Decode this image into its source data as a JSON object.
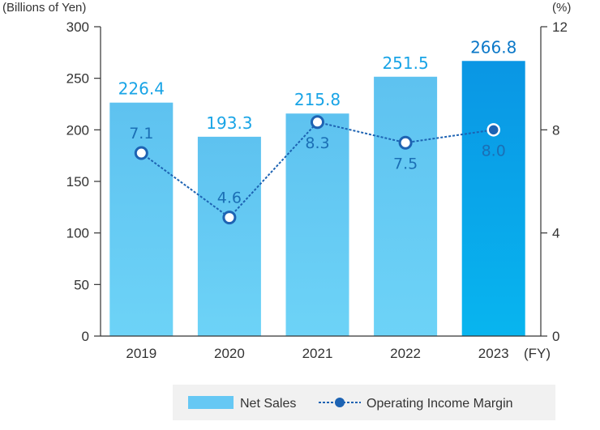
{
  "chart_data": {
    "type": "bar",
    "categories": [
      "2019",
      "2020",
      "2021",
      "2022",
      "2023"
    ],
    "x_suffix": "(FY)",
    "series": [
      {
        "name": "Net Sales",
        "type": "bar",
        "axis": "left",
        "values": [
          226.4,
          193.3,
          215.8,
          251.5,
          266.8
        ],
        "labels": [
          "226.4",
          "193.3",
          "215.8",
          "251.5",
          "266.8"
        ]
      },
      {
        "name": "Operating Income Margin",
        "type": "line",
        "axis": "right",
        "values": [
          7.1,
          4.6,
          8.3,
          7.5,
          8.0
        ],
        "labels": [
          "7.1",
          "4.6",
          "8.3",
          "7.5",
          "8.0"
        ]
      }
    ],
    "y_left": {
      "label": "(Billions of Yen)",
      "ylim": [
        0,
        300
      ],
      "ticks": [
        "0",
        "50",
        "100",
        "150",
        "200",
        "250",
        "300"
      ]
    },
    "y_right": {
      "label": "(%)",
      "ylim": [
        0,
        12
      ],
      "ticks": [
        "0",
        "4",
        "8",
        "12"
      ]
    },
    "legend": [
      "Net Sales",
      "Operating Income Margin"
    ],
    "legend_position": "bottom-right"
  },
  "colors": {
    "bar_top": "#5ec2f0",
    "bar_bottom": "#6dd1f7",
    "bar_highlight_top": "#0a96e4",
    "bar_highlight_bottom": "#08b3ee",
    "line": "#1d63b3",
    "marker_fill": "#1d63b3",
    "axis": "#333333",
    "grid": "#dddddd"
  }
}
